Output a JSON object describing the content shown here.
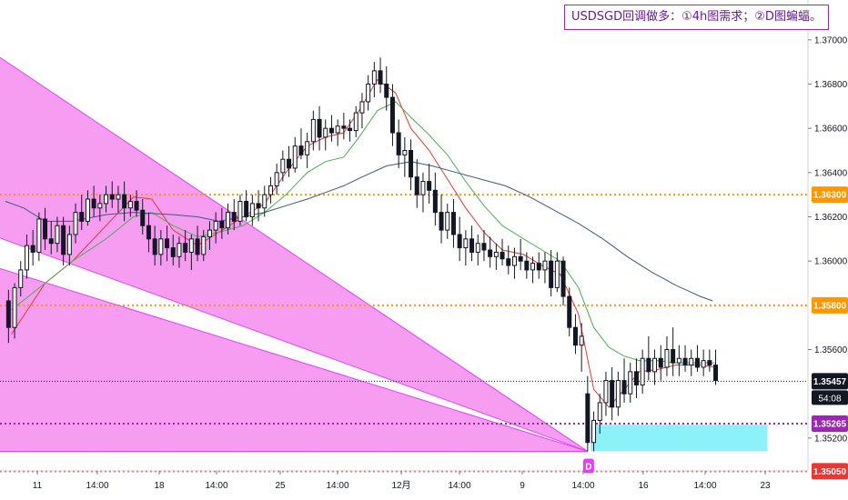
{
  "annotation": "USDSGD回调做多：①4h图需求；②D图蝙蝠。",
  "chart_data": {
    "type": "candlestick",
    "symbol": "USDSGD",
    "timeframe": "4h",
    "x_ticks": [
      "11",
      "14:00",
      "18",
      "14:00",
      "25",
      "14:00",
      "12月",
      "14:00",
      "9",
      "14:00",
      "16",
      "14:00",
      "23"
    ],
    "y_ticks": [
      "1.37000",
      "1.36800",
      "1.36600",
      "1.36400",
      "1.36200",
      "1.36000",
      "1.35600",
      "1.35200"
    ],
    "y_range": [
      1.3492,
      1.3718
    ],
    "price_levels": [
      {
        "label": "1.36300",
        "value": 1.363,
        "color": "#ff9800",
        "style": "dotted"
      },
      {
        "label": "1.35800",
        "value": 1.358,
        "color": "#ff9800",
        "style": "dotted"
      },
      {
        "label": "1.35457",
        "value": 1.35457,
        "color": "#131722",
        "style": "dotted"
      },
      {
        "label": "1.35265",
        "value": 1.35265,
        "color": "#9c27b0",
        "style": "dotted"
      },
      {
        "label": "1.35050",
        "value": 1.3505,
        "color": "#e53935",
        "style": "dotted"
      }
    ],
    "current_price": {
      "label": "1.35457",
      "countdown": "54:08"
    },
    "demand_zone": {
      "x_start": 19.2,
      "x_end": 25.0,
      "top": 1.3526,
      "bottom": 1.3514,
      "color": "#80f0f8"
    },
    "pattern": {
      "name": "bat",
      "color": "#f48cf0",
      "point_label": "D",
      "vertices": [
        [
          -0.5,
          1.3695
        ],
        [
          -0.5,
          1.3612
        ],
        [
          19.1,
          1.3514
        ],
        [
          -0.5,
          1.3598
        ],
        [
          -0.5,
          1.3514
        ]
      ]
    },
    "moving_averages": [
      {
        "color": "#e53935",
        "points": [
          [
            0.2,
            1.3567
          ],
          [
            1.3,
            1.359
          ],
          [
            2.2,
            1.36
          ],
          [
            3.3,
            1.3616
          ],
          [
            4.2,
            1.3629
          ],
          [
            4.8,
            1.3628
          ],
          [
            5.5,
            1.3614
          ],
          [
            6.3,
            1.3607
          ],
          [
            7.0,
            1.3613
          ],
          [
            7.8,
            1.362
          ],
          [
            8.5,
            1.3626
          ],
          [
            9.2,
            1.364
          ],
          [
            9.9,
            1.3652
          ],
          [
            10.5,
            1.3656
          ],
          [
            11.1,
            1.3658
          ],
          [
            11.6,
            1.3668
          ],
          [
            12.2,
            1.3682
          ],
          [
            12.8,
            1.3676
          ],
          [
            13.3,
            1.366
          ],
          [
            13.9,
            1.365
          ],
          [
            14.5,
            1.3637
          ],
          [
            15.1,
            1.3624
          ],
          [
            15.7,
            1.3613
          ],
          [
            16.3,
            1.3605
          ],
          [
            17.0,
            1.3603
          ],
          [
            17.6,
            1.3598
          ],
          [
            18.2,
            1.3594
          ],
          [
            18.8,
            1.3576
          ],
          [
            19.3,
            1.3542
          ],
          [
            19.8,
            1.3534
          ],
          [
            20.3,
            1.3542
          ],
          [
            20.8,
            1.355
          ],
          [
            21.4,
            1.3551
          ],
          [
            22.0,
            1.3553
          ],
          [
            22.8,
            1.3553
          ],
          [
            23.3,
            1.3552
          ]
        ]
      },
      {
        "color": "#4caf50",
        "points": [
          [
            0.2,
            1.3578
          ],
          [
            1.3,
            1.359
          ],
          [
            2.2,
            1.36
          ],
          [
            3.3,
            1.361
          ],
          [
            4.2,
            1.362
          ],
          [
            4.8,
            1.3622
          ],
          [
            5.5,
            1.3616
          ],
          [
            6.3,
            1.3611
          ],
          [
            7.0,
            1.3613
          ],
          [
            7.8,
            1.3616
          ],
          [
            8.5,
            1.3622
          ],
          [
            9.2,
            1.363
          ],
          [
            9.9,
            1.364
          ],
          [
            10.5,
            1.3645
          ],
          [
            11.1,
            1.3647
          ],
          [
            11.6,
            1.3656
          ],
          [
            12.2,
            1.3668
          ],
          [
            12.8,
            1.3672
          ],
          [
            13.3,
            1.3665
          ],
          [
            13.9,
            1.3657
          ],
          [
            14.5,
            1.3648
          ],
          [
            15.1,
            1.3636
          ],
          [
            15.7,
            1.3625
          ],
          [
            16.3,
            1.3616
          ],
          [
            17.0,
            1.361
          ],
          [
            17.6,
            1.3605
          ],
          [
            18.2,
            1.36
          ],
          [
            18.8,
            1.3588
          ],
          [
            19.3,
            1.357
          ],
          [
            19.8,
            1.3561
          ],
          [
            20.3,
            1.3557
          ],
          [
            20.8,
            1.3555
          ],
          [
            21.4,
            1.3555
          ],
          [
            22.0,
            1.3554
          ],
          [
            22.8,
            1.3554
          ],
          [
            23.3,
            1.3554
          ]
        ]
      },
      {
        "color": "#3d5a80",
        "points": [
          [
            0.0,
            1.3627
          ],
          [
            0.6,
            1.3624
          ],
          [
            1.3,
            1.3618
          ],
          [
            2.2,
            1.3618
          ],
          [
            3.3,
            1.3621
          ],
          [
            4.2,
            1.3622
          ],
          [
            5.5,
            1.3621
          ],
          [
            6.3,
            1.362
          ],
          [
            7.0,
            1.3618
          ],
          [
            7.8,
            1.362
          ],
          [
            8.5,
            1.3622
          ],
          [
            9.2,
            1.3625
          ],
          [
            9.9,
            1.3628
          ],
          [
            10.5,
            1.3631
          ],
          [
            11.1,
            1.3634
          ],
          [
            11.7,
            1.3638
          ],
          [
            12.5,
            1.3643
          ],
          [
            13.3,
            1.3645
          ],
          [
            14.0,
            1.3643
          ],
          [
            14.8,
            1.364
          ],
          [
            15.6,
            1.3637
          ],
          [
            16.4,
            1.3634
          ],
          [
            17.2,
            1.3629
          ],
          [
            18.0,
            1.3623
          ],
          [
            18.8,
            1.3617
          ],
          [
            19.6,
            1.361
          ],
          [
            20.4,
            1.3602
          ],
          [
            21.2,
            1.3595
          ],
          [
            22.0,
            1.3589
          ],
          [
            22.8,
            1.3584
          ],
          [
            23.2,
            1.3582
          ]
        ]
      }
    ],
    "ohlc": [
      [
        0.1,
        1.3582,
        1.3587,
        1.3563,
        1.357
      ],
      [
        0.3,
        1.357,
        1.359,
        1.3565,
        1.3588
      ],
      [
        0.5,
        1.3588,
        1.36,
        1.3584,
        1.3596
      ],
      [
        0.7,
        1.3596,
        1.3612,
        1.3592,
        1.3607
      ],
      [
        0.9,
        1.3607,
        1.3614,
        1.3598,
        1.3604
      ],
      [
        1.1,
        1.3604,
        1.3622,
        1.36,
        1.3619
      ],
      [
        1.3,
        1.3619,
        1.3624,
        1.3605,
        1.361
      ],
      [
        1.5,
        1.361,
        1.3618,
        1.3603,
        1.3608
      ],
      [
        1.7,
        1.3608,
        1.362,
        1.3604,
        1.3616
      ],
      [
        1.9,
        1.3616,
        1.362,
        1.3598,
        1.3603
      ],
      [
        2.1,
        1.3603,
        1.3616,
        1.3598,
        1.3612
      ],
      [
        2.3,
        1.3612,
        1.3626,
        1.3608,
        1.3622
      ],
      [
        2.5,
        1.3622,
        1.363,
        1.3614,
        1.3618
      ],
      [
        2.7,
        1.3618,
        1.3632,
        1.3616,
        1.3628
      ],
      [
        2.9,
        1.3628,
        1.3634,
        1.362,
        1.3624
      ],
      [
        3.1,
        1.3624,
        1.363,
        1.3618,
        1.3626
      ],
      [
        3.3,
        1.3626,
        1.3634,
        1.3622,
        1.363
      ],
      [
        3.5,
        1.363,
        1.3636,
        1.3624,
        1.3628
      ],
      [
        3.7,
        1.3628,
        1.3634,
        1.3622,
        1.363
      ],
      [
        3.9,
        1.363,
        1.3636,
        1.3618,
        1.3624
      ],
      [
        4.1,
        1.3624,
        1.363,
        1.362,
        1.3627
      ],
      [
        4.3,
        1.3627,
        1.3632,
        1.362,
        1.3623
      ],
      [
        4.5,
        1.3623,
        1.3628,
        1.3612,
        1.3616
      ],
      [
        4.7,
        1.3616,
        1.3622,
        1.3604,
        1.361
      ],
      [
        4.9,
        1.361,
        1.3616,
        1.3598,
        1.3603
      ],
      [
        5.1,
        1.3603,
        1.3614,
        1.3598,
        1.361
      ],
      [
        5.3,
        1.361,
        1.3616,
        1.36,
        1.3606
      ],
      [
        5.5,
        1.3606,
        1.3612,
        1.3598,
        1.3602
      ],
      [
        5.7,
        1.3602,
        1.3611,
        1.3597,
        1.3608
      ],
      [
        5.9,
        1.3608,
        1.3614,
        1.36,
        1.3604
      ],
      [
        6.1,
        1.3604,
        1.3612,
        1.3596,
        1.361
      ],
      [
        6.3,
        1.361,
        1.3616,
        1.36,
        1.3603
      ],
      [
        6.5,
        1.3603,
        1.3614,
        1.36,
        1.3611
      ],
      [
        6.7,
        1.3611,
        1.3618,
        1.3605,
        1.3614
      ],
      [
        6.9,
        1.3614,
        1.3622,
        1.3608,
        1.3618
      ],
      [
        7.1,
        1.3618,
        1.3624,
        1.361,
        1.3615
      ],
      [
        7.3,
        1.3615,
        1.3626,
        1.3612,
        1.3622
      ],
      [
        7.5,
        1.3622,
        1.3628,
        1.3614,
        1.3618
      ],
      [
        7.7,
        1.3618,
        1.363,
        1.3616,
        1.3627
      ],
      [
        7.9,
        1.3627,
        1.3632,
        1.3618,
        1.362
      ],
      [
        8.1,
        1.362,
        1.363,
        1.3616,
        1.3626
      ],
      [
        8.3,
        1.3626,
        1.3632,
        1.3618,
        1.3624
      ],
      [
        8.5,
        1.3624,
        1.3634,
        1.362,
        1.363
      ],
      [
        8.7,
        1.363,
        1.3638,
        1.3626,
        1.3634
      ],
      [
        8.9,
        1.3634,
        1.3644,
        1.363,
        1.364
      ],
      [
        9.1,
        1.364,
        1.365,
        1.3636,
        1.3646
      ],
      [
        9.3,
        1.3646,
        1.3652,
        1.3638,
        1.3642
      ],
      [
        9.5,
        1.3642,
        1.3656,
        1.364,
        1.3652
      ],
      [
        9.7,
        1.3652,
        1.366,
        1.3646,
        1.3648
      ],
      [
        9.9,
        1.3648,
        1.3658,
        1.3642,
        1.3654
      ],
      [
        10.1,
        1.3654,
        1.3668,
        1.365,
        1.3664
      ],
      [
        10.3,
        1.3664,
        1.367,
        1.365,
        1.3656
      ],
      [
        10.5,
        1.3656,
        1.3664,
        1.365,
        1.366
      ],
      [
        10.7,
        1.366,
        1.3666,
        1.3654,
        1.3658
      ],
      [
        10.9,
        1.3658,
        1.3664,
        1.3652,
        1.3661
      ],
      [
        11.1,
        1.3661,
        1.3667,
        1.3655,
        1.366
      ],
      [
        11.3,
        1.366,
        1.3664,
        1.3654,
        1.3659
      ],
      [
        11.5,
        1.3659,
        1.367,
        1.3656,
        1.3667
      ],
      [
        11.7,
        1.3667,
        1.3676,
        1.366,
        1.3672
      ],
      [
        11.9,
        1.3672,
        1.3684,
        1.3668,
        1.368
      ],
      [
        12.1,
        1.368,
        1.369,
        1.3674,
        1.3686
      ],
      [
        12.3,
        1.3686,
        1.3692,
        1.3676,
        1.368
      ],
      [
        12.5,
        1.368,
        1.3688,
        1.3668,
        1.3674
      ],
      [
        12.7,
        1.3674,
        1.368,
        1.3652,
        1.3658
      ],
      [
        12.9,
        1.3658,
        1.3664,
        1.3642,
        1.3648
      ],
      [
        13.1,
        1.3648,
        1.3656,
        1.3638,
        1.365
      ],
      [
        13.3,
        1.365,
        1.3655,
        1.3632,
        1.3638
      ],
      [
        13.5,
        1.3638,
        1.3646,
        1.3624,
        1.363
      ],
      [
        13.7,
        1.363,
        1.364,
        1.3622,
        1.3636
      ],
      [
        13.9,
        1.3636,
        1.3644,
        1.3626,
        1.3632
      ],
      [
        14.1,
        1.3632,
        1.364,
        1.3616,
        1.3622
      ],
      [
        14.3,
        1.3622,
        1.363,
        1.3608,
        1.3614
      ],
      [
        14.5,
        1.3614,
        1.3626,
        1.361,
        1.3622
      ],
      [
        14.7,
        1.3622,
        1.3628,
        1.3606,
        1.3612
      ],
      [
        14.9,
        1.3612,
        1.362,
        1.36,
        1.3606
      ],
      [
        15.1,
        1.3606,
        1.3614,
        1.3598,
        1.361
      ],
      [
        15.3,
        1.361,
        1.3616,
        1.36,
        1.3604
      ],
      [
        15.5,
        1.3604,
        1.3612,
        1.3598,
        1.3608
      ],
      [
        15.7,
        1.3608,
        1.3614,
        1.36,
        1.3605
      ],
      [
        15.9,
        1.3605,
        1.3611,
        1.3597,
        1.3602
      ],
      [
        16.1,
        1.3602,
        1.3608,
        1.3596,
        1.3604
      ],
      [
        16.3,
        1.3604,
        1.361,
        1.3598,
        1.3601
      ],
      [
        16.5,
        1.3601,
        1.3607,
        1.3594,
        1.3598
      ],
      [
        16.7,
        1.3598,
        1.3606,
        1.3592,
        1.3602
      ],
      [
        16.9,
        1.3602,
        1.361,
        1.3596,
        1.36
      ],
      [
        17.1,
        1.36,
        1.3604,
        1.3592,
        1.3596
      ],
      [
        17.3,
        1.3596,
        1.3602,
        1.359,
        1.3599
      ],
      [
        17.5,
        1.3599,
        1.3604,
        1.3592,
        1.3596
      ],
      [
        17.7,
        1.3596,
        1.3604,
        1.359,
        1.36
      ],
      [
        17.9,
        1.36,
        1.3605,
        1.3584,
        1.3588
      ],
      [
        18.1,
        1.3588,
        1.3604,
        1.3586,
        1.36
      ],
      [
        18.3,
        1.36,
        1.3602,
        1.358,
        1.3584
      ],
      [
        18.5,
        1.3584,
        1.3588,
        1.3566,
        1.357
      ],
      [
        18.7,
        1.357,
        1.3576,
        1.3558,
        1.3562
      ],
      [
        18.9,
        1.3562,
        1.3572,
        1.355,
        1.3566
      ],
      [
        19.1,
        1.354,
        1.3548,
        1.3514,
        1.3518
      ],
      [
        19.3,
        1.3518,
        1.3532,
        1.3514,
        1.3528
      ],
      [
        19.5,
        1.3528,
        1.354,
        1.3522,
        1.3536
      ],
      [
        19.7,
        1.3536,
        1.355,
        1.353,
        1.3546
      ],
      [
        19.9,
        1.3546,
        1.3552,
        1.3528,
        1.3534
      ],
      [
        20.1,
        1.3534,
        1.355,
        1.353,
        1.3546
      ],
      [
        20.3,
        1.3546,
        1.3556,
        1.3536,
        1.354
      ],
      [
        20.5,
        1.354,
        1.3554,
        1.3536,
        1.355
      ],
      [
        20.7,
        1.355,
        1.3556,
        1.3538,
        1.3544
      ],
      [
        20.9,
        1.3544,
        1.356,
        1.354,
        1.3556
      ],
      [
        21.1,
        1.3556,
        1.3566,
        1.3546,
        1.355
      ],
      [
        21.3,
        1.355,
        1.356,
        1.3544,
        1.3556
      ],
      [
        21.5,
        1.3556,
        1.3562,
        1.3546,
        1.3552
      ],
      [
        21.7,
        1.3552,
        1.3566,
        1.3548,
        1.356
      ],
      [
        21.9,
        1.356,
        1.357,
        1.3548,
        1.3554
      ],
      [
        22.1,
        1.3554,
        1.3562,
        1.3548,
        1.3556
      ],
      [
        22.3,
        1.3556,
        1.3562,
        1.355,
        1.3553
      ],
      [
        22.5,
        1.3553,
        1.356,
        1.3548,
        1.3556
      ],
      [
        22.7,
        1.3556,
        1.3562,
        1.355,
        1.3552
      ],
      [
        22.9,
        1.3552,
        1.356,
        1.3548,
        1.3555
      ],
      [
        23.1,
        1.3555,
        1.356,
        1.355,
        1.3553
      ],
      [
        23.3,
        1.3553,
        1.356,
        1.3544,
        1.3546
      ]
    ]
  }
}
